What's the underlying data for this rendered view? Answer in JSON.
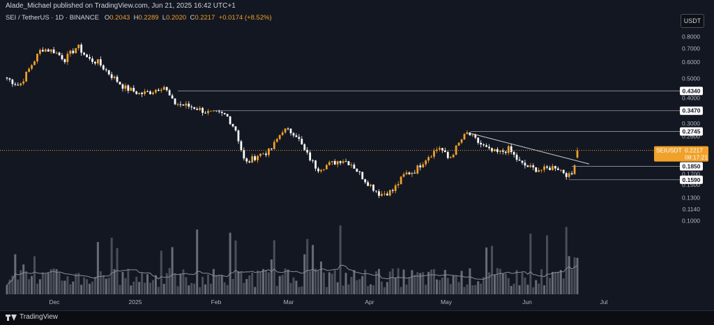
{
  "header": {
    "publisher": "Alade_Michael published on TradingView.com, Jun 21, 2025 16:42 UTC+1",
    "symbol": "SEI / TetherUS · 1D · BINANCE",
    "open_label": "O",
    "open": "0.2043",
    "high_label": "H",
    "high": "0.2289",
    "low_label": "L",
    "low": "0.2020",
    "close_label": "C",
    "close": "0.2217",
    "change": "+0.0174 (+8.52%)"
  },
  "currency_button": "USDT",
  "footer": {
    "logo_text": "TradingView"
  },
  "colors": {
    "background": "#131722",
    "up": "#f0a12a",
    "down": "#ffffff",
    "volume": "#787b86",
    "level_line": "#9598a1",
    "price_label": "#f0a12a"
  },
  "chart_data": {
    "type": "candlestick",
    "scale": "log",
    "ylim": [
      0.09,
      0.85
    ],
    "x_tick_labels": [
      "Dec",
      "2025",
      "Feb",
      "Mar",
      "Apr",
      "May",
      "Jun",
      "Jul"
    ],
    "y_tick_labels": [
      "0.8000",
      "0.7000",
      "0.6000",
      "0.5000",
      "0.4000",
      "0.3000",
      "0.2600",
      "0.2000",
      "0.1700",
      "0.1500",
      "0.1300",
      "0.1140",
      "0.1000"
    ],
    "levels": [
      {
        "label": "0.4340",
        "value": 0.434
      },
      {
        "label": "0.3470",
        "value": 0.347
      },
      {
        "label": "0.2745",
        "value": 0.2745
      },
      {
        "label": "0.1850",
        "value": 0.185
      },
      {
        "label": "0.1590",
        "value": 0.159
      }
    ],
    "current_price": {
      "symbol": "SEIUSDT",
      "price": "0.2217",
      "countdown": "08:17:21",
      "value": 0.2217
    },
    "trendline": {
      "from": {
        "date": "2025-05-11",
        "value": 0.268
      },
      "to": {
        "date": "2025-06-21",
        "value": 0.19
      }
    },
    "price_path": [
      [
        0,
        0.5
      ],
      [
        8,
        0.46
      ],
      [
        15,
        0.57
      ],
      [
        22,
        0.7
      ],
      [
        30,
        0.68
      ],
      [
        37,
        0.62
      ],
      [
        45,
        0.72
      ],
      [
        52,
        0.62
      ],
      [
        58,
        0.6
      ],
      [
        65,
        0.53
      ],
      [
        75,
        0.45
      ],
      [
        85,
        0.42
      ],
      [
        92,
        0.43
      ],
      [
        100,
        0.46
      ],
      [
        106,
        0.38
      ],
      [
        112,
        0.37
      ],
      [
        120,
        0.36
      ],
      [
        128,
        0.34
      ],
      [
        140,
        0.33
      ],
      [
        146,
        0.28
      ],
      [
        152,
        0.19
      ],
      [
        160,
        0.21
      ],
      [
        168,
        0.22
      ],
      [
        176,
        0.28
      ],
      [
        184,
        0.27
      ],
      [
        190,
        0.22
      ],
      [
        198,
        0.18
      ],
      [
        206,
        0.19
      ],
      [
        214,
        0.2
      ],
      [
        220,
        0.19
      ],
      [
        228,
        0.16
      ],
      [
        238,
        0.135
      ],
      [
        246,
        0.14
      ],
      [
        254,
        0.17
      ],
      [
        260,
        0.175
      ],
      [
        268,
        0.205
      ],
      [
        276,
        0.23
      ],
      [
        282,
        0.2
      ],
      [
        290,
        0.25
      ],
      [
        294,
        0.27
      ],
      [
        300,
        0.245
      ],
      [
        308,
        0.22
      ],
      [
        314,
        0.215
      ],
      [
        320,
        0.225
      ],
      [
        328,
        0.19
      ],
      [
        336,
        0.18
      ],
      [
        342,
        0.178
      ],
      [
        350,
        0.185
      ],
      [
        356,
        0.172
      ],
      [
        360,
        0.163
      ],
      [
        364,
        0.2217
      ]
    ],
    "volume_ma_note": ""
  }
}
